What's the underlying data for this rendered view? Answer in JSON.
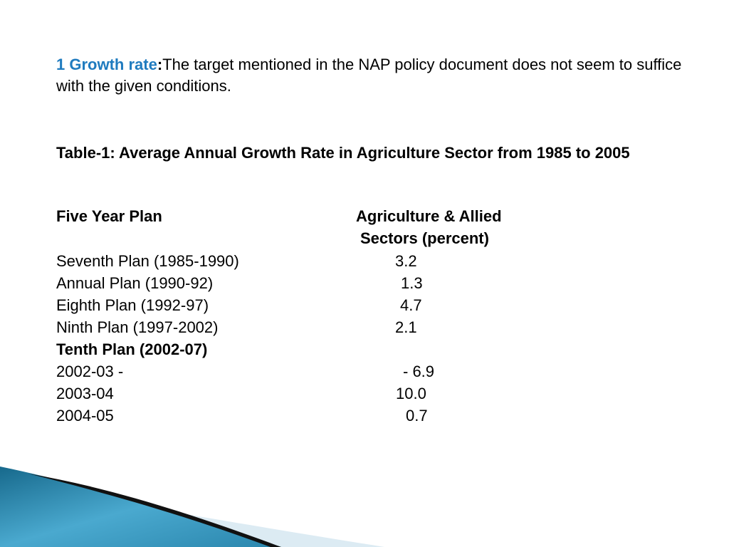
{
  "intro": {
    "heading": "1 Growth rate",
    "colon": ":",
    "text": "The target mentioned in the NAP policy document does not seem to suffice with the given conditions."
  },
  "table": {
    "title": "Table-1: Average Annual Growth Rate in    Agriculture Sector from 1985 to 2005",
    "col1_header": "Five Year Plan",
    "col2_header_line1": "Agriculture & Allied",
    "col2_header_line2": "Sectors (percent)",
    "rows": [
      {
        "plan": "Seventh Plan (1985-1990)",
        "value": "3.2"
      },
      {
        "plan": "Annual Plan (1990-92)",
        "value": "1.3"
      },
      {
        "plan": "Eighth Plan (1992-97)",
        "value": "4.7"
      },
      {
        "plan": "Ninth Plan (1997-2002)",
        "value": "2.1"
      },
      {
        "plan": "Tenth Plan (2002-07)",
        "value": ""
      },
      {
        "plan": "2002-03 -",
        "value": "- 6.9"
      },
      {
        "plan": "2003-04",
        "value": "10.0"
      },
      {
        "plan": "2004-05",
        "value": "0.7"
      }
    ]
  },
  "colors": {
    "accent": "#1f7bbf",
    "wave_dark": "#1a6f91",
    "wave_light": "#5bb6d8",
    "wave_pale": "#dcebf3"
  }
}
